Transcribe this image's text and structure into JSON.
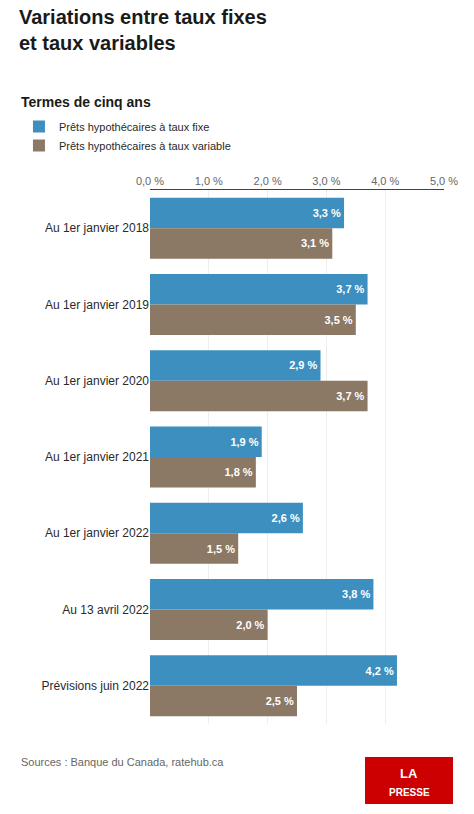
{
  "chart_data": {
    "type": "bar",
    "orientation": "horizontal",
    "title": "Variations entre taux fixes et taux variables",
    "subtitle": "Termes de cinq ans",
    "categories": [
      "Au 1er janvier 2018",
      "Au 1er janvier 2019",
      "Au 1er janvier 2020",
      "Au 1er janvier 2021",
      "Au 1er janvier 2022",
      "Au 13 avril 2022",
      "Prévisions juin 2022"
    ],
    "series": [
      {
        "name": "Prêts hypothécaires à taux fixe",
        "color": "#3d8fbf",
        "values": [
          3.3,
          3.7,
          2.9,
          1.9,
          2.6,
          3.8,
          4.2
        ],
        "value_labels": [
          "3,3 %",
          "3,7 %",
          "2,9 %",
          "1,9 %",
          "2,6 %",
          "3,8 %",
          "4,2 %"
        ]
      },
      {
        "name": "Prêts hypothécaires à taux variable",
        "color": "#8b7865",
        "values": [
          3.1,
          3.5,
          3.7,
          1.8,
          1.5,
          2.0,
          2.5
        ],
        "value_labels": [
          "3,1 %",
          "3,5 %",
          "3,7 %",
          "1,8 %",
          "1,5 %",
          "2,0 %",
          "2,5 %"
        ]
      }
    ],
    "xlim": [
      0,
      5.0
    ],
    "xticks": [
      {
        "value": 0.0,
        "label": "0,0 %"
      },
      {
        "value": 1.0,
        "label": "1,0 %"
      },
      {
        "value": 2.0,
        "label": "2,0 %"
      },
      {
        "value": 3.0,
        "label": "3,0 %"
      },
      {
        "value": 4.0,
        "label": "4,0 %"
      },
      {
        "value": 5.0,
        "label": "5,0 %"
      }
    ],
    "grid": true,
    "data_labels": true,
    "legend": "top",
    "annotations": [
      {
        "text": "Sources : Banque du Canada, ratehub.ca"
      },
      {
        "text": "LA",
        "color": "#cc0000"
      },
      {
        "text": "PRESSE",
        "color": "#cc0000"
      }
    ]
  }
}
